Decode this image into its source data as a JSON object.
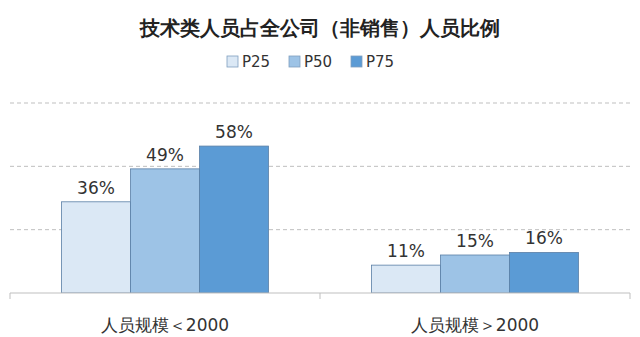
{
  "chart_data": {
    "type": "bar",
    "title": "技术类人员占全公司（非销售）人员比例",
    "categories": [
      "人员规模＜2000",
      "人员规模＞2000"
    ],
    "series": [
      {
        "name": "P25",
        "color": "#dbe8f5",
        "values": [
          36,
          11
        ],
        "value_labels": [
          "36%",
          "11%"
        ]
      },
      {
        "name": "P50",
        "color": "#9dc3e6",
        "values": [
          49,
          15
        ],
        "value_labels": [
          "49%",
          "15%"
        ]
      },
      {
        "name": "P75",
        "color": "#5b9bd5",
        "values": [
          58,
          16
        ],
        "value_labels": [
          "58%",
          "16%"
        ]
      }
    ],
    "ylim": [
      0,
      75
    ],
    "yticks": [
      0,
      25,
      50,
      75
    ],
    "grid": true,
    "legend": "top",
    "data_labels": true,
    "tick_labels": "x"
  }
}
